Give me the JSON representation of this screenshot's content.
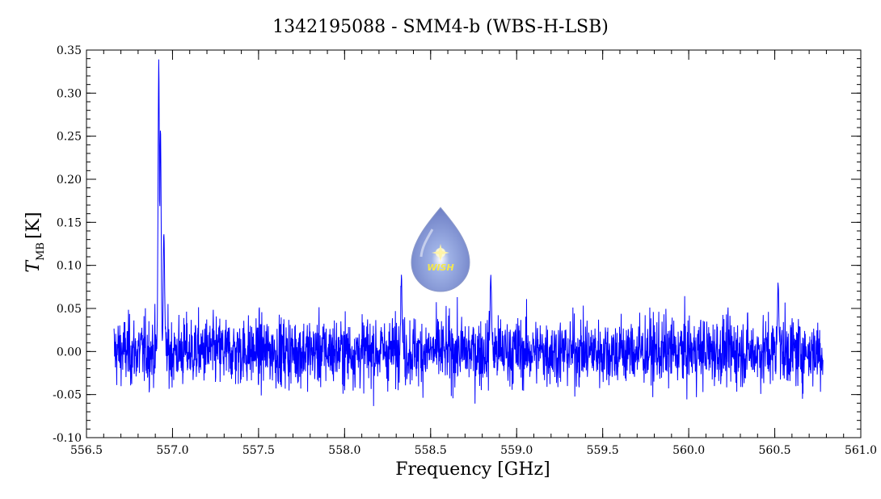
{
  "chart_data": {
    "type": "line",
    "title": "1342195088 - SMM4-b (WBS-H-LSB)",
    "xlabel": "Frequency [GHz]",
    "ylabel_main": "T",
    "ylabel_sub": "MB",
    "ylabel_unit": "[K]",
    "xlim": [
      556.5,
      561.0
    ],
    "ylim": [
      -0.1,
      0.35
    ],
    "x_ticks": [
      "556.5",
      "557.0",
      "557.5",
      "558.0",
      "558.5",
      "559.0",
      "559.5",
      "560.0",
      "560.5",
      "561.0"
    ],
    "y_ticks": [
      "-0.10",
      "-0.05",
      "0.00",
      "0.05",
      "0.10",
      "0.15",
      "0.20",
      "0.25",
      "0.30",
      "0.35"
    ],
    "grid": false,
    "line_color": "#0000ff",
    "x_range_observed": [
      556.66,
      560.78
    ],
    "noise_rms": 0.02,
    "peaks": [
      {
        "x": 556.92,
        "y": 0.335
      },
      {
        "x": 556.93,
        "y": 0.26
      },
      {
        "x": 556.95,
        "y": 0.14
      },
      {
        "x": 558.33,
        "y": 0.085
      },
      {
        "x": 560.52,
        "y": 0.078
      },
      {
        "x": 558.85,
        "y": 0.09
      }
    ],
    "watermark": {
      "icon": "wish-drop-logo",
      "text": "WISH"
    }
  }
}
